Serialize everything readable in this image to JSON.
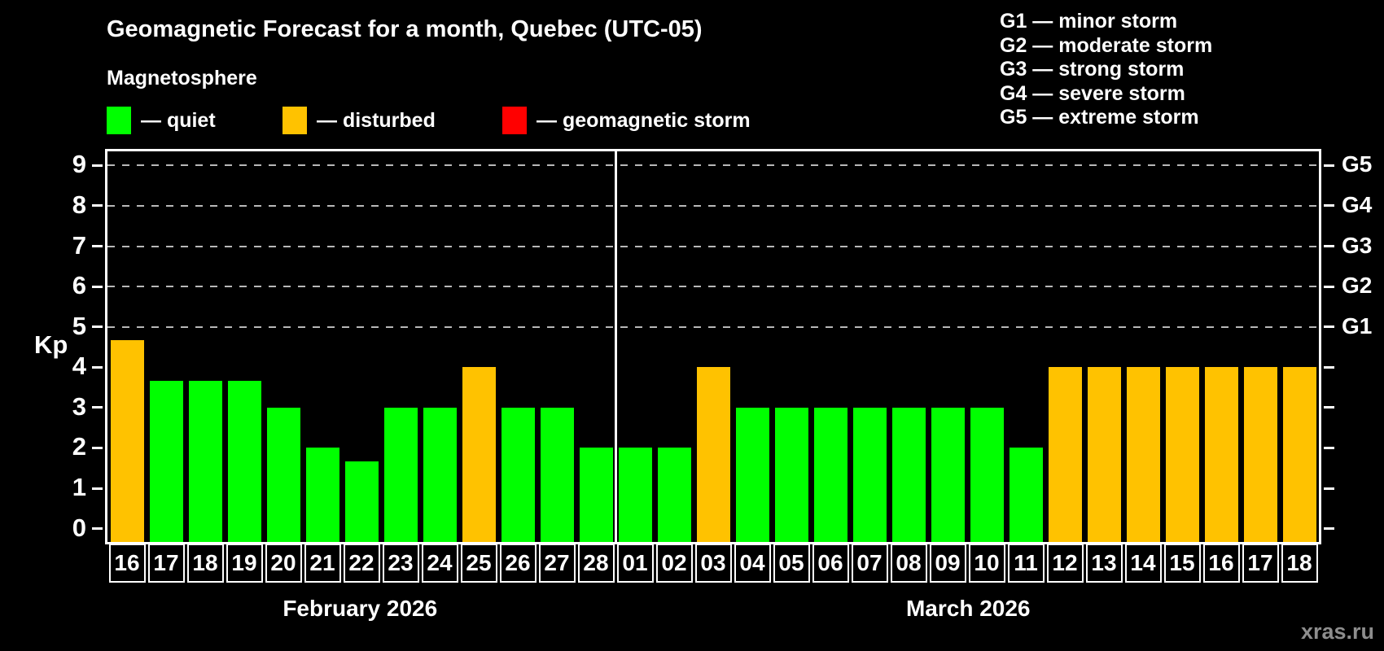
{
  "title": "Geomagnetic Forecast for a month, Quebec (UTC-05)",
  "subtitle": "Magnetosphere",
  "legend": {
    "items": [
      {
        "key": "quiet",
        "label": "— quiet",
        "color": "#00ff00"
      },
      {
        "key": "disturbed",
        "label": "— disturbed",
        "color": "#ffc200"
      },
      {
        "key": "storm",
        "label": "— geomagnetic storm",
        "color": "#ff0000"
      }
    ]
  },
  "storm_scale": {
    "items": [
      {
        "label": "G1 — minor storm"
      },
      {
        "label": "G2 — moderate storm"
      },
      {
        "label": "G3 — strong storm"
      },
      {
        "label": "G4 — severe storm"
      },
      {
        "label": "G5 — extreme storm"
      }
    ]
  },
  "watermark": "xras.ru",
  "chart_data": {
    "type": "bar",
    "title": "Geomagnetic Forecast for a month, Quebec (UTC-05)",
    "ylabel": "Kp",
    "ylim": [
      -0.33,
      9.35
    ],
    "yticks": [
      0,
      1,
      2,
      3,
      4,
      5,
      6,
      7,
      8,
      9
    ],
    "dashed_gridlines": [
      5,
      6,
      7,
      8,
      9
    ],
    "right_axis_labels": [
      {
        "value": 5,
        "label": "G1"
      },
      {
        "value": 6,
        "label": "G2"
      },
      {
        "value": 7,
        "label": "G3"
      },
      {
        "value": 8,
        "label": "G4"
      },
      {
        "value": 9,
        "label": "G5"
      }
    ],
    "status_colors": {
      "quiet": "#00ff00",
      "disturbed": "#ffc200",
      "storm": "#ff0000"
    },
    "months": [
      {
        "label": "February 2026",
        "start_index": 0,
        "count": 13
      },
      {
        "label": "March 2026",
        "start_index": 13,
        "count": 18
      }
    ],
    "categories": [
      "16",
      "17",
      "18",
      "19",
      "20",
      "21",
      "22",
      "23",
      "24",
      "25",
      "26",
      "27",
      "28",
      "01",
      "02",
      "03",
      "04",
      "05",
      "06",
      "07",
      "08",
      "09",
      "10",
      "11",
      "12",
      "13",
      "14",
      "15",
      "16",
      "17",
      "18"
    ],
    "series": [
      {
        "name": "Kp forecast",
        "values": [
          4.67,
          3.67,
          3.67,
          3.67,
          3,
          2,
          1.67,
          3,
          3,
          4,
          3,
          3,
          2,
          2,
          2,
          4,
          3,
          3,
          3,
          3,
          3,
          3,
          3,
          2,
          4,
          4,
          4,
          4,
          4,
          4,
          4
        ],
        "statuses": [
          "disturbed",
          "quiet",
          "quiet",
          "quiet",
          "quiet",
          "quiet",
          "quiet",
          "quiet",
          "quiet",
          "disturbed",
          "quiet",
          "quiet",
          "quiet",
          "quiet",
          "quiet",
          "disturbed",
          "quiet",
          "quiet",
          "quiet",
          "quiet",
          "quiet",
          "quiet",
          "quiet",
          "quiet",
          "disturbed",
          "disturbed",
          "disturbed",
          "disturbed",
          "disturbed",
          "disturbed",
          "disturbed"
        ]
      }
    ],
    "legend_position": "top-left",
    "grid": "horizontal-dashed-on-storm-levels"
  }
}
